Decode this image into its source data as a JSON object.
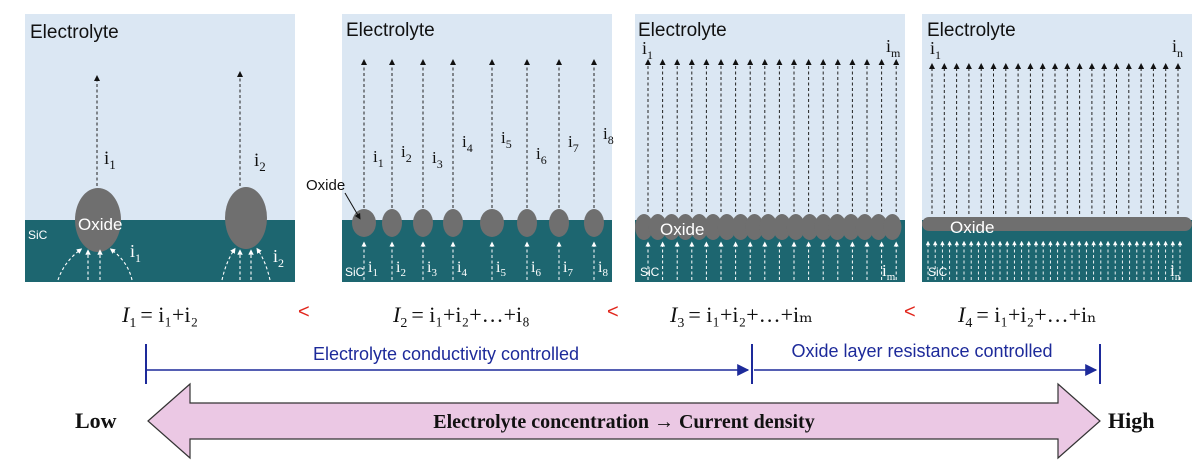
{
  "panels": [
    {
      "electrolyte_label": "Electrolyte",
      "sic_label": "SiC",
      "oxide_label": "Oxide",
      "currents": [
        {
          "base": "i",
          "sub": "1"
        },
        {
          "base": "i",
          "sub": "2"
        }
      ],
      "sum_equation": {
        "lhs": "I",
        "lhs_sub": "1",
        "rhs": "= i₁+i₂"
      }
    },
    {
      "electrolyte_label": "Electrolyte",
      "sic_label": "SiC",
      "oxide_label": "Oxide",
      "currents": [
        {
          "base": "i",
          "sub": "1"
        },
        {
          "base": "i",
          "sub": "2"
        },
        {
          "base": "i",
          "sub": "3"
        },
        {
          "base": "i",
          "sub": "4"
        },
        {
          "base": "i",
          "sub": "5"
        },
        {
          "base": "i",
          "sub": "6"
        },
        {
          "base": "i",
          "sub": "7"
        },
        {
          "base": "i",
          "sub": "8"
        }
      ],
      "sum_equation": {
        "lhs": "I",
        "lhs_sub": "2",
        "rhs": "= i₁+i₂+…+i₈"
      }
    },
    {
      "electrolyte_label": "Electrolyte",
      "sic_label": "SiC",
      "oxide_label": "Oxide",
      "currents": [
        {
          "base": "i",
          "sub": "1"
        },
        {
          "base": "i",
          "sub": "m"
        }
      ],
      "sum_equation": {
        "lhs": "I",
        "lhs_sub": "3",
        "rhs": "= i₁+i₂+…+iₘ"
      }
    },
    {
      "electrolyte_label": "Electrolyte",
      "sic_label": "SiC",
      "oxide_label": "Oxide",
      "currents": [
        {
          "base": "i",
          "sub": "1"
        },
        {
          "base": "i",
          "sub": "n"
        }
      ],
      "sum_equation": {
        "lhs": "I",
        "lhs_sub": "4",
        "rhs": "= i₁+i₂+…+iₙ"
      }
    }
  ],
  "comparison_symbol": "<",
  "regimes": {
    "left": "Electrolyte conductivity controlled",
    "right": "Oxide layer resistance controlled"
  },
  "scale": {
    "low": "Low",
    "high": "High",
    "caption": "Electrolyte concentration → Current density"
  },
  "colors": {
    "electrolyte": "#dbe7f3",
    "sic": "#1d6670",
    "oxide": "#6f6f6f",
    "comparison": "#e1251b",
    "regime_text": "#1d2a9a",
    "big_arrow_fill": "#ebc8e4"
  }
}
